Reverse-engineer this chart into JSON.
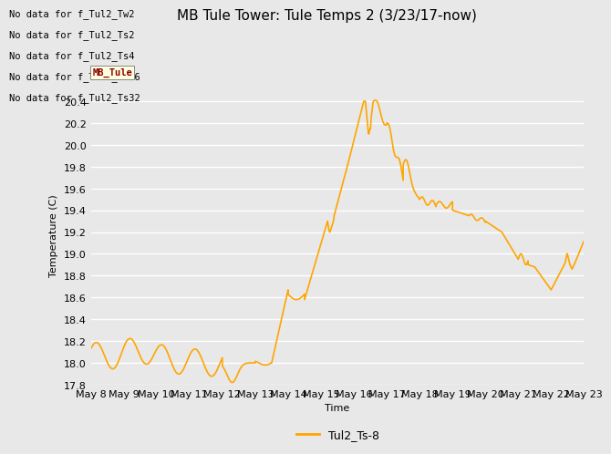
{
  "title": "MB Tule Tower: Tule Temps 2 (3/23/17-now)",
  "xlabel": "Time",
  "ylabel": "Temperature (C)",
  "line_color": "#FFA500",
  "line_label": "Tul2_Ts-8",
  "bg_color": "#E8E8E8",
  "ylim": [
    17.8,
    20.55
  ],
  "yticks": [
    17.8,
    18.0,
    18.2,
    18.4,
    18.6,
    18.8,
    19.0,
    19.2,
    19.4,
    19.6,
    19.8,
    20.0,
    20.2,
    20.4
  ],
  "no_data_labels": [
    "No data for f_Tul2_Tw2",
    "No data for f_Tul2_Ts2",
    "No data for f_Tul2_Ts4",
    "No data for f_Tul2_Ts16",
    "No data for f_Tul2_Ts32"
  ],
  "tooltip_text": "MB_Tule",
  "x_tick_labels": [
    "May 8",
    "May 9",
    "May 10",
    "May 11",
    "May 12",
    "May 13",
    "May 14",
    "May 15",
    "May 16",
    "May 17",
    "May 18",
    "May 19",
    "May 20",
    "May 21",
    "May 22",
    "May 23"
  ],
  "xlim": [
    0,
    15
  ],
  "grid_color": "#ffffff",
  "title_fontsize": 11,
  "axis_fontsize": 8,
  "legend_fontsize": 9
}
